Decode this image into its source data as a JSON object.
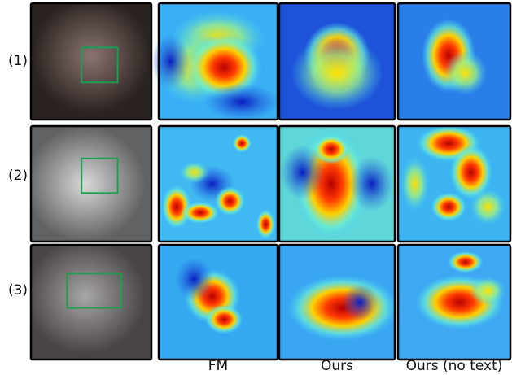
{
  "figure": {
    "row_labels": [
      "(1)",
      "(2)",
      "(3)"
    ],
    "column_labels": [
      "FM",
      "Ours",
      "Ours (no text)"
    ]
  }
}
